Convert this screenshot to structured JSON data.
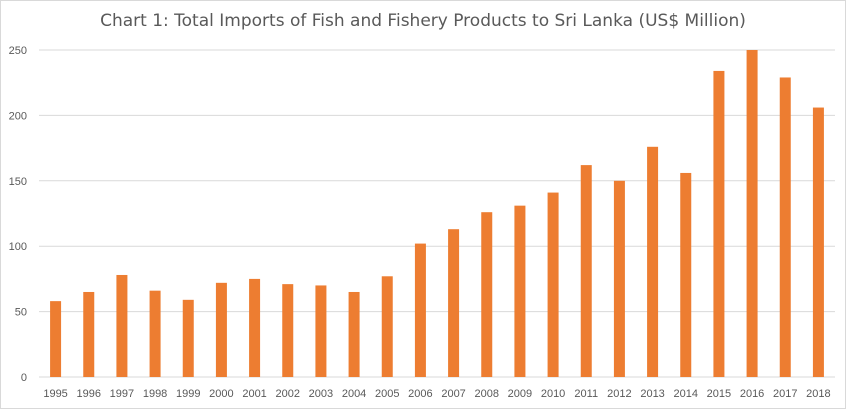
{
  "chart_data": {
    "type": "bar",
    "title": "Chart 1: Total Imports of Fish and Fishery Products to Sri Lanka (US$ Million)",
    "xlabel": "",
    "ylabel": "",
    "categories": [
      "1995",
      "1996",
      "1997",
      "1998",
      "1999",
      "2000",
      "2001",
      "2002",
      "2003",
      "2004",
      "2005",
      "2006",
      "2007",
      "2008",
      "2009",
      "2010",
      "2011",
      "2012",
      "2013",
      "2014",
      "2015",
      "2016",
      "2017",
      "2018"
    ],
    "series": [
      {
        "values": [
          58,
          65,
          78,
          66,
          59,
          72,
          75,
          71,
          70,
          65,
          77,
          102,
          113,
          126,
          131,
          141,
          162,
          150,
          176,
          156,
          234,
          250,
          229,
          206
        ],
        "color": "#ED7D31"
      }
    ],
    "ylim": [
      0,
      250
    ],
    "yticks": [
      0,
      50,
      100,
      150,
      200,
      250
    ],
    "grid": true,
    "legend": "none"
  }
}
